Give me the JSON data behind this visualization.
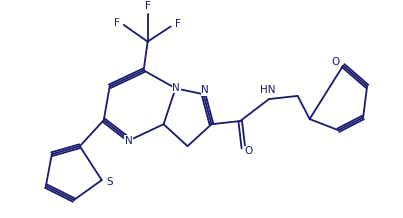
{
  "bg_color": "#ffffff",
  "line_color": "#1a1a6e",
  "figsize": [
    4.03,
    2.18
  ],
  "dpi": 100,
  "font_size": 7.5,
  "line_width": 1.3,
  "xlim": [
    0,
    10
  ],
  "ylim": [
    0,
    5.4
  ]
}
